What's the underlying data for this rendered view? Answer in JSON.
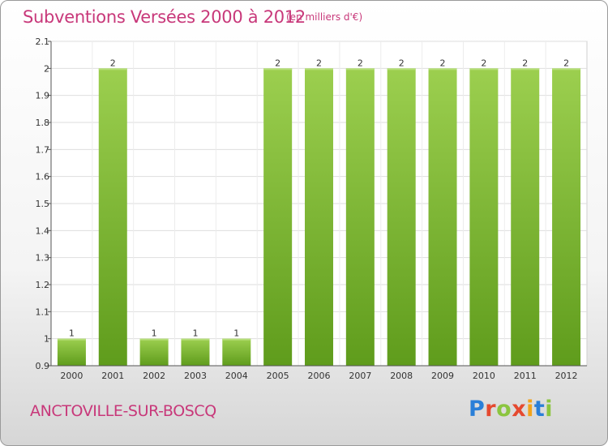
{
  "header": {
    "title": "Subventions Versées 2000 à 2012",
    "subtitle": "(en milliers d'€)"
  },
  "footer": {
    "commune": "ANCTOVILLE-SUR-BOSCQ",
    "logo_letters": [
      "P",
      "r",
      "o",
      "x",
      "i",
      "t",
      "i"
    ],
    "logo_colors": [
      "#2a7fd8",
      "#e5492f",
      "#8bc53f",
      "#e5492f",
      "#f2a31b",
      "#2a7fd8",
      "#8bc53f"
    ]
  },
  "chart_data": {
    "type": "bar",
    "categories": [
      "2000",
      "2001",
      "2002",
      "2003",
      "2004",
      "2005",
      "2006",
      "2007",
      "2008",
      "2009",
      "2010",
      "2011",
      "2012"
    ],
    "values": [
      1,
      2,
      1,
      1,
      1,
      2,
      2,
      2,
      2,
      2,
      2,
      2,
      2
    ],
    "data_labels": [
      "1",
      "2",
      "1",
      "1",
      "1",
      "2",
      "2",
      "2",
      "2",
      "2",
      "2",
      "2",
      "2"
    ],
    "ylim": [
      0.9,
      2.1
    ],
    "yticks": [
      0.9,
      1,
      1.1,
      1.2,
      1.3,
      1.4,
      1.5,
      1.6,
      1.7,
      1.8,
      1.9,
      2,
      2.1
    ],
    "ytick_labels": [
      "0.9",
      "1",
      "1.1",
      "1.2",
      "1.3",
      "1.4",
      "1.5",
      "1.6",
      "1.7",
      "1.8",
      "1.9",
      "2",
      "2.1"
    ],
    "grid": true,
    "bar_color": "#8cc63f",
    "bar_color_dark": "#5a9a1a"
  }
}
